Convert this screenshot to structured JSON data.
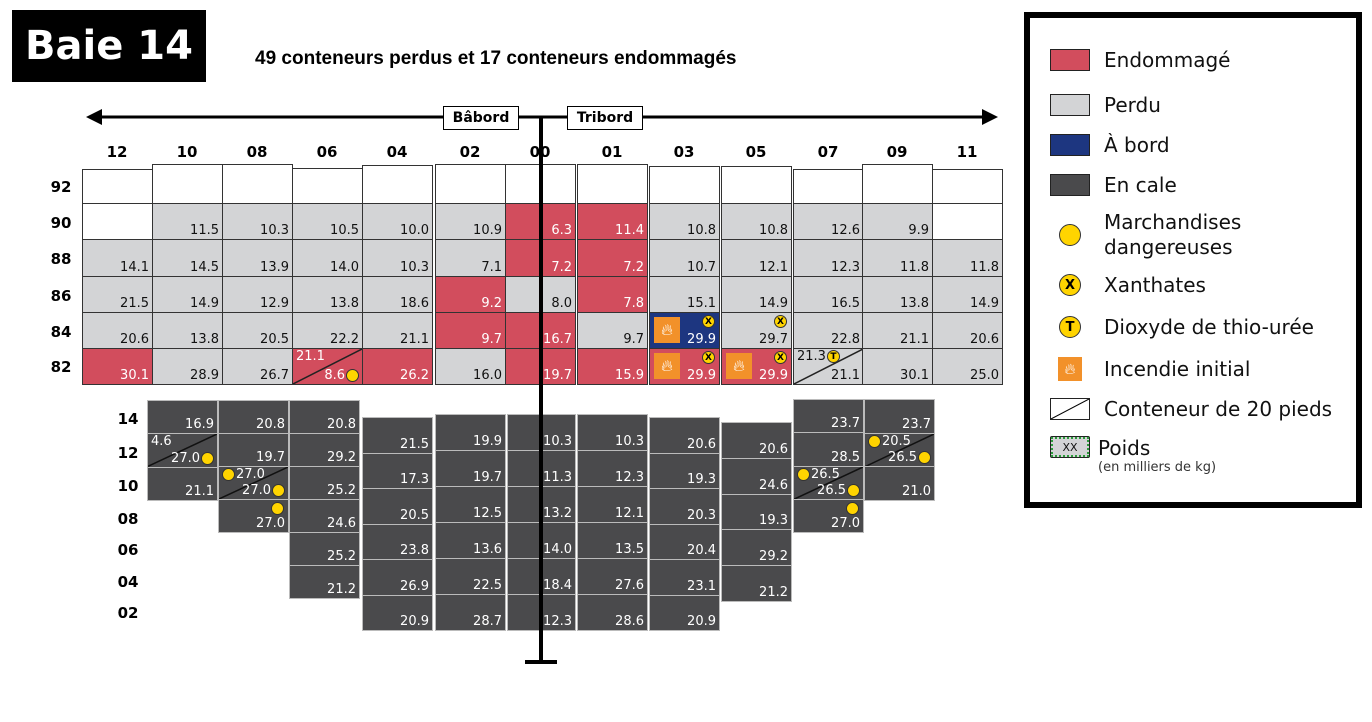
{
  "title": "Baie 14",
  "subtitle": "49 conteneurs perdus et 17 conteneurs endommagés",
  "port_label": "Bâbord",
  "starboard_label": "Tribord",
  "colors": {
    "damaged": "#d24d5d",
    "lost": "#d3d4d6",
    "onboard": "#1d3680",
    "hold": "#4a4a4c",
    "dangerous": "#ffd400",
    "fire": "#f2912a"
  },
  "deck": {
    "row_labels": [
      "92",
      "90",
      "88",
      "86",
      "84",
      "82"
    ],
    "columns": [
      {
        "label": "12",
        "cells": [
          {
            "s": "empty"
          },
          {
            "s": "empty"
          },
          {
            "s": "lost",
            "w": "14.1"
          },
          {
            "s": "lost",
            "w": "21.5"
          },
          {
            "s": "lost",
            "w": "20.6"
          },
          {
            "s": "damaged",
            "w": "30.1"
          }
        ]
      },
      {
        "label": "10",
        "cells": [
          {
            "s": "empty"
          },
          {
            "s": "lost",
            "w": "11.5"
          },
          {
            "s": "lost",
            "w": "14.5"
          },
          {
            "s": "lost",
            "w": "14.9"
          },
          {
            "s": "lost",
            "w": "13.8"
          },
          {
            "s": "lost",
            "w": "28.9"
          }
        ]
      },
      {
        "label": "08",
        "cells": [
          {
            "s": "empty"
          },
          {
            "s": "lost",
            "w": "10.3"
          },
          {
            "s": "lost",
            "w": "13.9"
          },
          {
            "s": "lost",
            "w": "12.9"
          },
          {
            "s": "lost",
            "w": "20.5"
          },
          {
            "s": "lost",
            "w": "26.7"
          }
        ]
      },
      {
        "label": "06",
        "cells": [
          {
            "s": "empty"
          },
          {
            "s": "lost",
            "w": "10.5"
          },
          {
            "s": "lost",
            "w": "14.0"
          },
          {
            "s": "lost",
            "w": "13.8"
          },
          {
            "s": "lost",
            "w": "22.2"
          },
          {
            "s": "damaged",
            "split": true,
            "top": {
              "w": "21.1"
            },
            "bottom": {
              "w": "8.6",
              "after": "dg"
            }
          }
        ]
      },
      {
        "label": "04",
        "cells": [
          {
            "s": "empty"
          },
          {
            "s": "lost",
            "w": "10.0"
          },
          {
            "s": "lost",
            "w": "10.3"
          },
          {
            "s": "lost",
            "w": "18.6"
          },
          {
            "s": "lost",
            "w": "21.1"
          },
          {
            "s": "damaged",
            "w": "26.2"
          }
        ]
      },
      {
        "label": "02",
        "cells": [
          {
            "s": "empty"
          },
          {
            "s": "lost",
            "w": "10.9"
          },
          {
            "s": "lost",
            "w": "7.1"
          },
          {
            "s": "damaged",
            "w": "9.2"
          },
          {
            "s": "damaged",
            "w": "9.7"
          },
          {
            "s": "lost",
            "w": "16.0"
          }
        ]
      },
      {
        "label": "00",
        "cells": [
          {
            "s": "empty"
          },
          {
            "s": "damaged",
            "w": "6.3"
          },
          {
            "s": "damaged",
            "w": "7.2"
          },
          {
            "s": "lost",
            "w": "8.0"
          },
          {
            "s": "damaged",
            "w": "16.7"
          },
          {
            "s": "damaged",
            "w": "19.7"
          }
        ]
      },
      {
        "label": "01",
        "cells": [
          {
            "s": "empty"
          },
          {
            "s": "damaged",
            "w": "11.4"
          },
          {
            "s": "damaged",
            "w": "7.2"
          },
          {
            "s": "damaged",
            "w": "7.8"
          },
          {
            "s": "lost",
            "w": "9.7"
          },
          {
            "s": "damaged",
            "w": "15.9"
          }
        ]
      },
      {
        "label": "03",
        "cells": [
          {
            "s": "empty"
          },
          {
            "s": "lost",
            "w": "10.8"
          },
          {
            "s": "lost",
            "w": "10.7"
          },
          {
            "s": "lost",
            "w": "15.1"
          },
          {
            "s": "onboard",
            "w": "29.9",
            "fire": true,
            "mark": "X"
          },
          {
            "s": "damaged",
            "w": "29.9",
            "fire": true,
            "mark": "X"
          }
        ]
      },
      {
        "label": "05",
        "cells": [
          {
            "s": "empty"
          },
          {
            "s": "lost",
            "w": "10.8"
          },
          {
            "s": "lost",
            "w": "12.1"
          },
          {
            "s": "lost",
            "w": "14.9"
          },
          {
            "s": "lost",
            "w": "29.7",
            "mark": "X"
          },
          {
            "s": "damaged",
            "w": "29.9",
            "fire": true,
            "mark": "X"
          }
        ]
      },
      {
        "label": "07",
        "cells": [
          {
            "s": "empty"
          },
          {
            "s": "lost",
            "w": "12.6"
          },
          {
            "s": "lost",
            "w": "12.3"
          },
          {
            "s": "lost",
            "w": "16.5"
          },
          {
            "s": "lost",
            "w": "22.8"
          },
          {
            "s": "lost",
            "split": true,
            "top": {
              "w": "21.3",
              "after": "T"
            },
            "bottom": {
              "w": "21.1"
            }
          }
        ]
      },
      {
        "label": "09",
        "cells": [
          {
            "s": "empty"
          },
          {
            "s": "lost",
            "w": "9.9"
          },
          {
            "s": "lost",
            "w": "11.8"
          },
          {
            "s": "lost",
            "w": "13.8"
          },
          {
            "s": "lost",
            "w": "21.1"
          },
          {
            "s": "lost",
            "w": "30.1"
          }
        ]
      },
      {
        "label": "11",
        "cells": [
          {
            "s": "empty"
          },
          {
            "s": "empty"
          },
          {
            "s": "lost",
            "w": "11.8"
          },
          {
            "s": "lost",
            "w": "14.9"
          },
          {
            "s": "lost",
            "w": "20.6"
          },
          {
            "s": "lost",
            "w": "25.0"
          }
        ]
      }
    ]
  },
  "hold": {
    "row_labels": [
      "14",
      "12",
      "10",
      "08",
      "06",
      "04",
      "02"
    ],
    "columns": [
      {
        "cells": [
          {
            "w": "16.9"
          },
          {
            "split": true,
            "top": {
              "w": "4.6"
            },
            "bottom": {
              "w": "27.0",
              "after": "dg"
            }
          },
          {
            "w": "21.1"
          }
        ]
      },
      {
        "cells": [
          {
            "w": "20.8"
          },
          {
            "w": "19.7"
          },
          {
            "split": true,
            "top": {
              "w": "27.0",
              "before": "dg"
            },
            "bottom": {
              "w": "27.0",
              "after": "dg"
            }
          },
          {
            "w": "27.0",
            "mark": "dg"
          }
        ]
      },
      {
        "cells": [
          {
            "w": "20.8"
          },
          {
            "w": "29.2"
          },
          {
            "w": "25.2"
          },
          {
            "w": "24.6"
          },
          {
            "w": "25.2"
          },
          {
            "w": "21.2"
          }
        ]
      },
      {
        "cells": [
          {
            "w": "21.5"
          },
          {
            "w": "17.3"
          },
          {
            "w": "20.5"
          },
          {
            "w": "23.8"
          },
          {
            "w": "26.9"
          },
          {
            "w": "20.9"
          }
        ]
      },
      {
        "cells": [
          {
            "w": "19.9"
          },
          {
            "w": "19.7"
          },
          {
            "w": "12.5"
          },
          {
            "w": "13.6"
          },
          {
            "w": "22.5"
          },
          {
            "w": "28.7"
          }
        ]
      },
      {
        "cells": [
          {
            "w": "10.3"
          },
          {
            "w": "11.3"
          },
          {
            "w": "13.2"
          },
          {
            "w": "14.0"
          },
          {
            "w": "18.4"
          },
          {
            "w": "12.3"
          }
        ]
      },
      {
        "cells": [
          {
            "w": "10.3"
          },
          {
            "w": "12.3"
          },
          {
            "w": "12.1"
          },
          {
            "w": "13.5"
          },
          {
            "w": "27.6"
          },
          {
            "w": "28.6"
          }
        ]
      },
      {
        "cells": [
          {
            "w": "20.6"
          },
          {
            "w": "19.3"
          },
          {
            "w": "20.3"
          },
          {
            "w": "20.4"
          },
          {
            "w": "23.1"
          },
          {
            "w": "20.9"
          }
        ]
      },
      {
        "cells": [
          {
            "w": "20.6"
          },
          {
            "w": "24.6"
          },
          {
            "w": "19.3"
          },
          {
            "w": "29.2"
          },
          {
            "w": "21.2"
          }
        ]
      },
      {
        "cells": [
          {
            "w": "23.7"
          },
          {
            "w": "28.5"
          },
          {
            "split": true,
            "top": {
              "w": "26.5",
              "before": "dg"
            },
            "bottom": {
              "w": "26.5",
              "after": "dg"
            }
          },
          {
            "w": "27.0",
            "mark": "dg"
          }
        ]
      },
      {
        "cells": [
          {
            "w": "23.7"
          },
          {
            "split": true,
            "top": {
              "w": "20.5",
              "before": "dg"
            },
            "bottom": {
              "w": "26.5",
              "after": "dg"
            }
          },
          {
            "w": "21.0"
          }
        ]
      }
    ]
  },
  "legend": {
    "damaged": "Endommagé",
    "lost": "Perdu",
    "onboard": "À bord",
    "hold": "En cale",
    "dangerous": "Marchandises dangereuses",
    "xanthates": "Xanthates",
    "thiourea": "Dioxyde de thio-urée",
    "fire": "Incendie initial",
    "twenty_ft": "Conteneur de 20 pieds",
    "weight": "Poids",
    "weight_unit": "(en milliers de kg)",
    "weight_swatch": "XX",
    "x_mark": "X",
    "t_mark": "T"
  }
}
